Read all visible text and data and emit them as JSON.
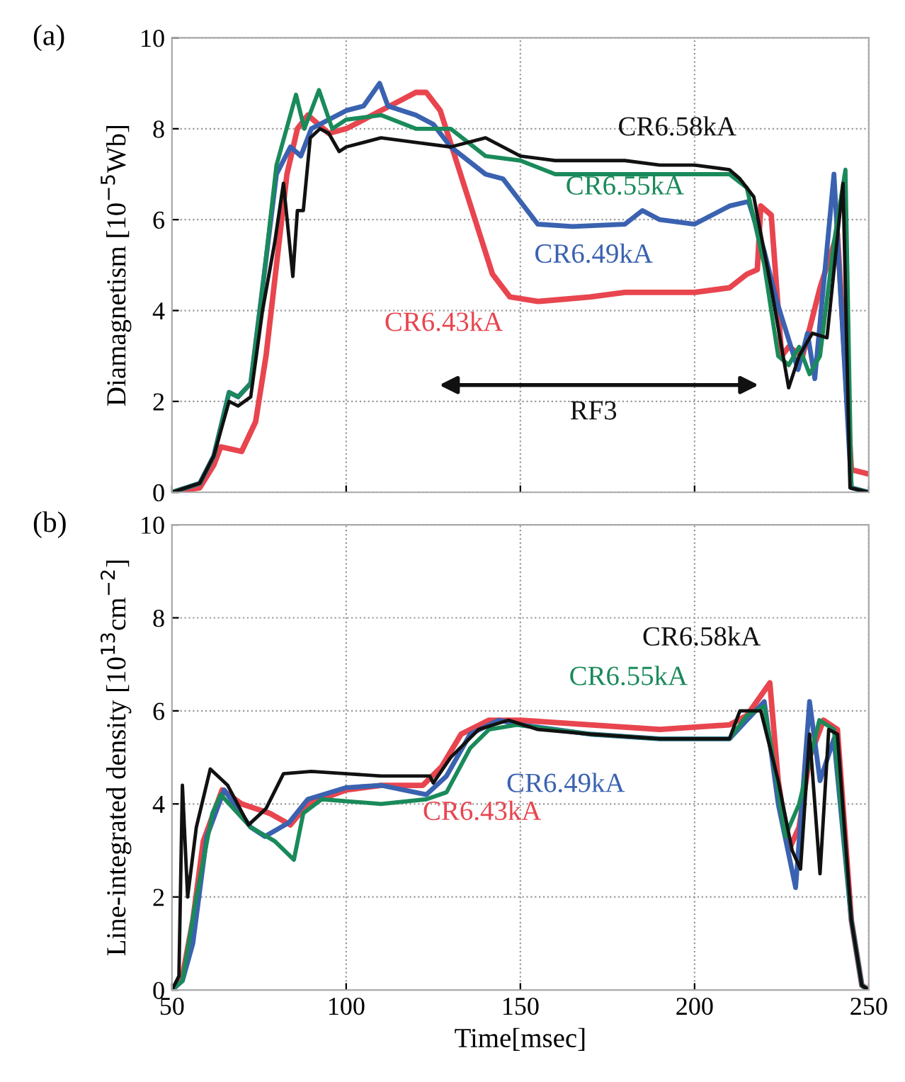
{
  "chart_data": [
    {
      "type": "line",
      "title": "(a)",
      "ylabel": "Diamagnetism [10$^{−5}$Wb]",
      "xlim": [
        50,
        250
      ],
      "ylim": [
        0,
        10
      ],
      "xticks": [
        50,
        100,
        150,
        200,
        250
      ],
      "yticks": [
        0,
        2,
        4,
        6,
        8,
        10
      ],
      "grid": true,
      "tick_labels": "y",
      "line_style": "solid",
      "annotations": [
        "RF3"
      ],
      "series": [
        {
          "name": "CR6.43kA",
          "color": "#e8454f",
          "x": [
            50,
            58,
            62,
            64,
            70,
            74,
            77,
            80,
            83,
            86,
            89,
            95,
            100,
            105,
            110,
            115,
            120,
            123,
            127,
            132,
            137,
            142,
            147,
            155,
            170,
            180,
            200,
            210,
            215,
            218,
            219,
            222,
            225,
            227,
            231,
            236,
            241,
            245,
            250
          ],
          "values": [
            0,
            0.1,
            0.6,
            1.0,
            0.9,
            1.55,
            3.0,
            5.0,
            7.0,
            8.0,
            8.3,
            7.9,
            8.0,
            8.2,
            8.4,
            8.6,
            8.8,
            8.8,
            8.4,
            7.2,
            6.0,
            4.8,
            4.3,
            4.2,
            4.3,
            4.4,
            4.4,
            4.5,
            4.8,
            4.9,
            6.3,
            6.1,
            3.0,
            3.2,
            3.0,
            4.5,
            5.7,
            0.5,
            0.4
          ]
        },
        {
          "name": "CR6.49kA",
          "color": "#3a62b0",
          "x": [
            50,
            58,
            62,
            66.4,
            69,
            72.6,
            76,
            80,
            84,
            87,
            90,
            95,
            100,
            105,
            109.6,
            112,
            120,
            125,
            130,
            140,
            145,
            150,
            155,
            165,
            180,
            185,
            190,
            200,
            210,
            215.5,
            220,
            223.6,
            229.7,
            232.4,
            234.5,
            240,
            245,
            250
          ],
          "values": [
            0,
            0.2,
            0.8,
            2.2,
            2.1,
            2.4,
            4.5,
            7.0,
            7.6,
            7.4,
            8.0,
            8.2,
            8.4,
            8.5,
            9.0,
            8.5,
            8.3,
            8.1,
            7.6,
            7.0,
            6.9,
            6.4,
            5.9,
            5.85,
            5.9,
            6.2,
            6.0,
            5.9,
            6.3,
            6.4,
            5.3,
            4.2,
            2.7,
            3.5,
            2.5,
            7.0,
            0.1,
            0
          ]
        },
        {
          "name": "CR6.55kA",
          "color": "#1a8a5a",
          "x": [
            50,
            58,
            62,
            66.4,
            69,
            72.6,
            76,
            80,
            85.6,
            88,
            92.2,
            96,
            100,
            110,
            120,
            130,
            140,
            150,
            160,
            170,
            180,
            190,
            200,
            210,
            215,
            220,
            224,
            227,
            230,
            233,
            236,
            240,
            243.3,
            245,
            250
          ],
          "values": [
            0,
            0.2,
            0.8,
            2.2,
            2.1,
            2.4,
            4.5,
            7.2,
            8.75,
            8.0,
            8.85,
            8.0,
            8.2,
            8.3,
            8.0,
            8.0,
            7.4,
            7.3,
            7.0,
            7.0,
            7.0,
            7.0,
            7.0,
            7.0,
            6.7,
            5.0,
            3.0,
            2.8,
            3.2,
            2.6,
            3.0,
            5.5,
            7.1,
            0.1,
            0
          ]
        },
        {
          "name": "CR6.58kA",
          "color": "#111111",
          "x": [
            50,
            58,
            62,
            66.4,
            69,
            72.6,
            76,
            79.5,
            82,
            84.7,
            86,
            87.7,
            89.7,
            92.5,
            95,
            98,
            100,
            105,
            110,
            120,
            130,
            140,
            150,
            160,
            170,
            180,
            190,
            200,
            210,
            213,
            217,
            222,
            227,
            230,
            233.8,
            238,
            242.6,
            244.6,
            250
          ],
          "values": [
            0,
            0.2,
            0.8,
            2.0,
            1.9,
            2.1,
            4.0,
            5.5,
            6.8,
            4.75,
            6.2,
            6.2,
            7.8,
            8.0,
            7.9,
            7.5,
            7.6,
            7.7,
            7.8,
            7.7,
            7.6,
            7.8,
            7.4,
            7.3,
            7.3,
            7.3,
            7.2,
            7.2,
            7.1,
            6.9,
            6.5,
            4.5,
            2.3,
            3.0,
            3.5,
            3.4,
            6.8,
            0.1,
            0
          ]
        }
      ]
    },
    {
      "type": "line",
      "title": "(b)",
      "xlabel": "Time[msec]",
      "ylabel": "Line-integrated density [10$^{13}$cm$^{−2}$]",
      "xlim": [
        50,
        250
      ],
      "ylim": [
        0,
        10
      ],
      "xticks": [
        50,
        100,
        150,
        200,
        250
      ],
      "yticks": [
        0,
        2,
        4,
        6,
        8,
        10
      ],
      "grid": true,
      "line_style": "solid",
      "series": [
        {
          "name": "CR6.43kA",
          "color": "#e8454f",
          "x": [
            50,
            53,
            56,
            59,
            64.4,
            70,
            74,
            78,
            84,
            89,
            100,
            110,
            122,
            127.4,
            133,
            141,
            150,
            170,
            190,
            210,
            215,
            221.6,
            224,
            227,
            230,
            233,
            237,
            241,
            245,
            248,
            250
          ],
          "values": [
            0,
            0.3,
            1.5,
            3.2,
            4.3,
            4.0,
            3.9,
            3.8,
            3.55,
            4.0,
            4.3,
            4.4,
            4.4,
            4.8,
            5.5,
            5.8,
            5.8,
            5.7,
            5.6,
            5.7,
            5.9,
            6.6,
            4.5,
            3.0,
            3.5,
            5.0,
            5.8,
            5.6,
            1.5,
            0.1,
            0
          ]
        },
        {
          "name": "CR6.49kA",
          "color": "#3a62b0",
          "x": [
            50,
            53,
            56,
            60,
            65,
            72.6,
            76.7,
            83.6,
            89,
            100,
            110,
            123,
            128.8,
            135.6,
            143.8,
            150,
            170,
            190,
            210,
            215,
            220,
            224,
            229,
            233,
            236,
            240,
            245,
            248,
            250
          ],
          "values": [
            0,
            0.2,
            1.0,
            3.3,
            4.3,
            3.5,
            3.3,
            3.6,
            4.1,
            4.35,
            4.4,
            4.2,
            4.6,
            5.5,
            5.8,
            5.7,
            5.5,
            5.4,
            5.4,
            5.8,
            6.2,
            4.0,
            2.2,
            6.2,
            4.5,
            5.4,
            1.5,
            0.1,
            0
          ]
        },
        {
          "name": "CR6.55kA",
          "color": "#1a8a5a",
          "x": [
            50,
            53,
            57,
            61.6,
            64,
            72.6,
            79.5,
            85,
            87.7,
            93,
            110,
            123,
            128.8,
            135.6,
            141,
            149,
            170,
            190,
            210,
            215,
            220,
            223.6,
            226,
            230,
            235.8,
            240,
            245,
            248,
            250
          ],
          "values": [
            0,
            0.2,
            2.0,
            3.8,
            4.2,
            3.5,
            3.2,
            2.8,
            3.8,
            4.1,
            4.0,
            4.1,
            4.25,
            5.2,
            5.6,
            5.7,
            5.5,
            5.4,
            5.4,
            5.9,
            6.1,
            4.5,
            3.3,
            4.0,
            5.8,
            5.6,
            1.5,
            0.1,
            0
          ]
        },
        {
          "name": "CR6.58kA",
          "color": "#111111",
          "x": [
            50,
            52,
            53,
            54.5,
            57,
            61,
            66,
            72,
            77,
            82,
            90,
            100,
            110,
            124,
            125,
            130,
            138,
            146.6,
            155,
            170,
            190,
            210,
            213,
            219,
            224,
            228,
            230.4,
            233,
            236,
            238.5,
            241,
            245,
            248,
            250
          ],
          "values": [
            0,
            0.3,
            4.4,
            2.0,
            3.5,
            4.75,
            4.4,
            3.55,
            3.9,
            4.65,
            4.7,
            4.65,
            4.6,
            4.6,
            4.45,
            5.0,
            5.6,
            5.8,
            5.6,
            5.5,
            5.4,
            5.4,
            6.0,
            6.0,
            4.5,
            3.0,
            2.6,
            5.5,
            2.5,
            5.6,
            5.5,
            1.5,
            0.1,
            0
          ]
        }
      ]
    }
  ]
}
